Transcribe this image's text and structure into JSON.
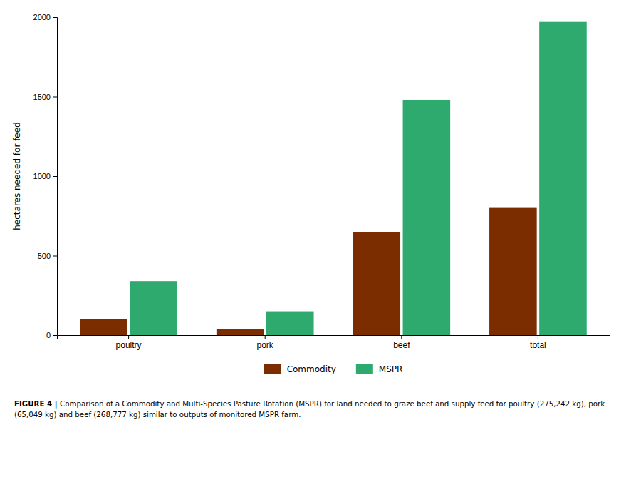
{
  "chart_data": {
    "type": "bar",
    "categories": [
      "poultry",
      "pork",
      "beef",
      "total"
    ],
    "series": [
      {
        "name": "Commodity",
        "color": "#7B2D00",
        "values": [
          100,
          40,
          650,
          800
        ]
      },
      {
        "name": "MSPR",
        "color": "#2EAA6E",
        "values": [
          340,
          150,
          1480,
          1970
        ]
      }
    ],
    "ylabel": "hectares needed for feed",
    "ylim": [
      0,
      2000
    ],
    "yticks": [
      0,
      500,
      1000,
      1500,
      2000
    ],
    "grid": false,
    "legend": "bottom",
    "annotations": [
      "FIGURE 4 |",
      "Comparison of a Commodity and Multi-Species Pasture Rotation (MSPR) for land needed to graze beef and supply feed for poultry (275,242 kg), pork",
      "(65,049 kg) and beef (268,777 kg) similar to outputs of monitored MSPR farm."
    ]
  }
}
